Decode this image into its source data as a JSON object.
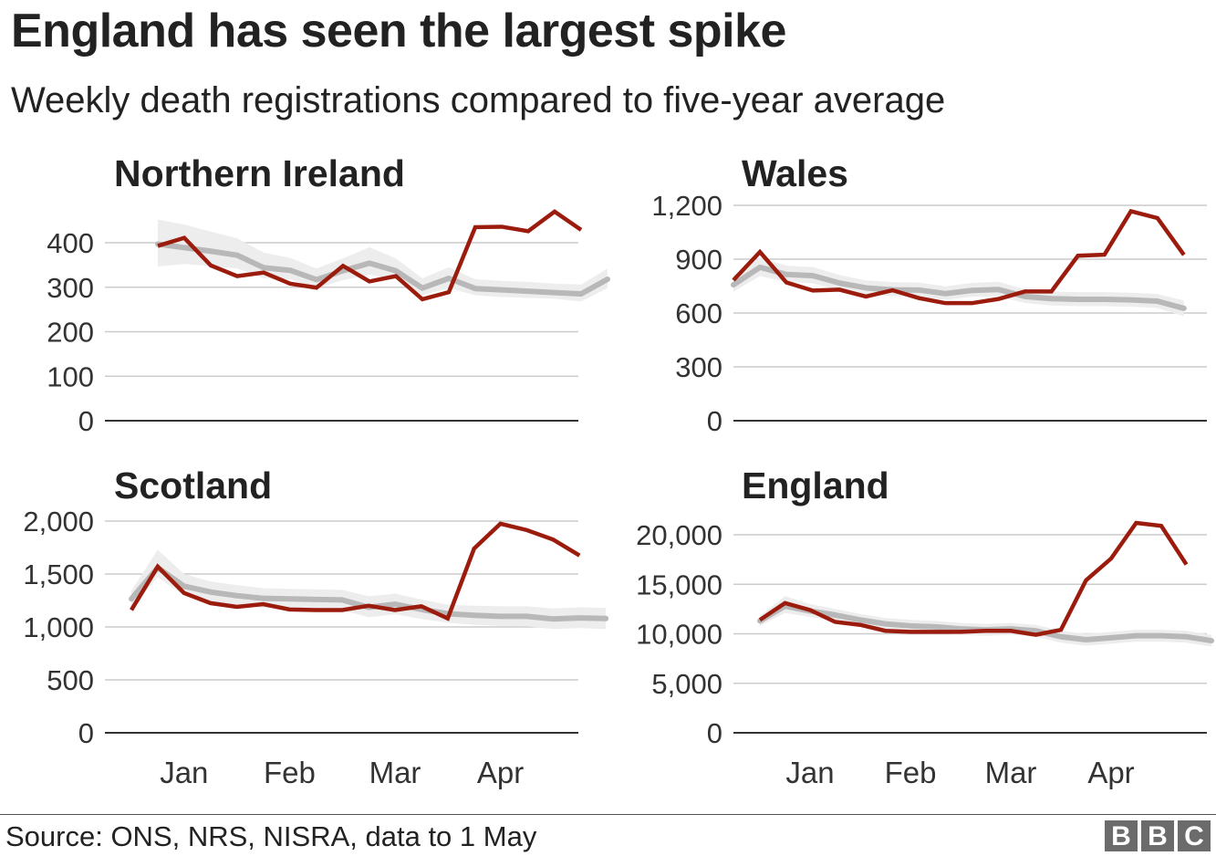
{
  "title": "England has seen the largest spike",
  "subtitle": "Weekly death registrations compared to five-year average",
  "source": "Source: ONS, NRS, NISRA, data to 1 May",
  "logo": [
    "B",
    "B",
    "C"
  ],
  "colors": {
    "actual": "#9b1b0d",
    "average": "#b8b8b8",
    "range": "#ededed",
    "grid": "#cccccc",
    "axis": "#333333"
  },
  "chart_data": [
    {
      "type": "line",
      "title": "Northern Ireland",
      "ylim": [
        0,
        400
      ],
      "yticks": [
        0,
        100,
        200,
        300,
        400
      ],
      "ytick_labels": [
        "0",
        "100",
        "200",
        "300",
        "400"
      ],
      "xticks": [
        {
          "label": "Jan",
          "week": 2
        },
        {
          "label": "Feb",
          "week": 6
        },
        {
          "label": "Mar",
          "week": 10
        },
        {
          "label": "Apr",
          "week": 14
        }
      ],
      "weeks": [
        1,
        2,
        3,
        4,
        5,
        6,
        7,
        8,
        9,
        10,
        11,
        12,
        13,
        14,
        15,
        16,
        17,
        18
      ],
      "series": [
        {
          "role": "average",
          "values": [
            397,
            389,
            381,
            372,
            344,
            338,
            317,
            337,
            354,
            337,
            298,
            320,
            297,
            294,
            291,
            288,
            285,
            318
          ],
          "range_low": [
            347,
            352,
            348,
            342,
            320,
            318,
            298,
            316,
            328,
            318,
            282,
            298,
            282,
            278,
            276,
            274,
            268,
            298
          ],
          "range_high": [
            452,
            441,
            425,
            410,
            378,
            366,
            342,
            365,
            390,
            365,
            320,
            345,
            318,
            314,
            312,
            308,
            306,
            342
          ]
        },
        {
          "role": "actual",
          "values": [
            393,
            411,
            349,
            325,
            333,
            308,
            299,
            348,
            313,
            325,
            273,
            289,
            435,
            436,
            426,
            470,
            429
          ]
        }
      ]
    },
    {
      "type": "line",
      "title": "Wales",
      "ylim": [
        0,
        1200
      ],
      "yticks": [
        0,
        300,
        600,
        900,
        1200
      ],
      "ytick_labels": [
        "0",
        "300",
        "600",
        "900",
        "1,200"
      ],
      "xticks": [
        {
          "label": "Jan",
          "week": 2
        },
        {
          "label": "Feb",
          "week": 6
        },
        {
          "label": "Mar",
          "week": 10
        },
        {
          "label": "Apr",
          "week": 14
        }
      ],
      "weeks": [
        1,
        2,
        3,
        4,
        5,
        6,
        7,
        8,
        9,
        10,
        11,
        12,
        13,
        14,
        15,
        16,
        17,
        18
      ],
      "series": [
        {
          "role": "average",
          "values": [
            757,
            855,
            815,
            808,
            767,
            740,
            729,
            728,
            708,
            726,
            731,
            692,
            680,
            676,
            676,
            673,
            666,
            626
          ],
          "range_low": [
            718,
            806,
            772,
            765,
            728,
            704,
            694,
            692,
            674,
            690,
            694,
            656,
            642,
            638,
            638,
            635,
            628,
            582
          ],
          "range_high": [
            810,
            910,
            864,
            856,
            812,
            782,
            772,
            770,
            748,
            768,
            774,
            732,
            720,
            716,
            716,
            713,
            706,
            670
          ]
        },
        {
          "role": "actual",
          "values": [
            783,
            940,
            770,
            725,
            730,
            692,
            727,
            683,
            655,
            655,
            678,
            720,
            720,
            919,
            925,
            1167,
            1129,
            924
          ]
        }
      ]
    },
    {
      "type": "line",
      "title": "Scotland",
      "ylim": [
        0,
        2000
      ],
      "yticks": [
        0,
        500,
        1000,
        1500,
        2000
      ],
      "ytick_labels": [
        "0",
        "500",
        "1,000",
        "1,500",
        "2,000"
      ],
      "xticks": [
        {
          "label": "Jan",
          "week": 3
        },
        {
          "label": "Feb",
          "week": 7
        },
        {
          "label": "Mar",
          "week": 11
        },
        {
          "label": "Apr",
          "week": 15
        }
      ],
      "weeks": [
        1,
        2,
        3,
        4,
        5,
        6,
        7,
        8,
        9,
        10,
        11,
        12,
        13,
        14,
        15,
        16,
        17,
        18,
        19
      ],
      "series": [
        {
          "role": "average",
          "values": [
            1265,
            1560,
            1385,
            1330,
            1295,
            1270,
            1265,
            1260,
            1255,
            1185,
            1215,
            1165,
            1125,
            1110,
            1100,
            1100,
            1075,
            1085,
            1080
          ],
          "range_low": [
            1180,
            1470,
            1295,
            1240,
            1200,
            1180,
            1170,
            1165,
            1160,
            1090,
            1120,
            1075,
            1040,
            1020,
            1010,
            1005,
            980,
            990,
            980
          ],
          "range_high": [
            1340,
            1730,
            1500,
            1430,
            1395,
            1365,
            1360,
            1355,
            1350,
            1290,
            1315,
            1260,
            1210,
            1200,
            1195,
            1195,
            1175,
            1185,
            1180
          ]
        },
        {
          "role": "actual",
          "values": [
            1160,
            1570,
            1320,
            1225,
            1190,
            1215,
            1165,
            1160,
            1160,
            1200,
            1160,
            1195,
            1080,
            1740,
            1975,
            1915,
            1825,
            1675
          ]
        }
      ]
    },
    {
      "type": "line",
      "title": "England",
      "ylim": [
        0,
        20000
      ],
      "yticks": [
        0,
        5000,
        10000,
        15000,
        20000
      ],
      "ytick_labels": [
        "0",
        "5,000",
        "10,000",
        "15,000",
        "20,000"
      ],
      "xticks": [
        {
          "label": "Jan",
          "week": 3
        },
        {
          "label": "Feb",
          "week": 7
        },
        {
          "label": "Mar",
          "week": 11
        },
        {
          "label": "Apr",
          "week": 15
        }
      ],
      "weeks": [
        1,
        2,
        3,
        4,
        5,
        6,
        7,
        8,
        9,
        10,
        11,
        12,
        13,
        14,
        15,
        16,
        17,
        18,
        19
      ],
      "series": [
        {
          "role": "average",
          "values": [
            11300,
            12800,
            12300,
            11900,
            11400,
            11000,
            10800,
            10700,
            10500,
            10400,
            10500,
            10300,
            9700,
            9400,
            9600,
            9800,
            9800,
            9700,
            9300
          ],
          "range_low": [
            10800,
            12100,
            11700,
            11300,
            10800,
            10400,
            10200,
            10100,
            9900,
            9800,
            9900,
            9700,
            9100,
            8800,
            9000,
            9200,
            9200,
            9100,
            8700
          ],
          "range_high": [
            11800,
            13800,
            13000,
            12500,
            12000,
            11600,
            11400,
            11300,
            11100,
            11000,
            11100,
            10900,
            10300,
            10000,
            10200,
            10400,
            10400,
            10300,
            9900
          ]
        },
        {
          "role": "actual",
          "values": [
            11400,
            13100,
            12400,
            11200,
            10900,
            10300,
            10200,
            10200,
            10200,
            10300,
            10300,
            9900,
            10400,
            15400,
            17600,
            21200,
            20900,
            17000
          ]
        }
      ]
    }
  ]
}
